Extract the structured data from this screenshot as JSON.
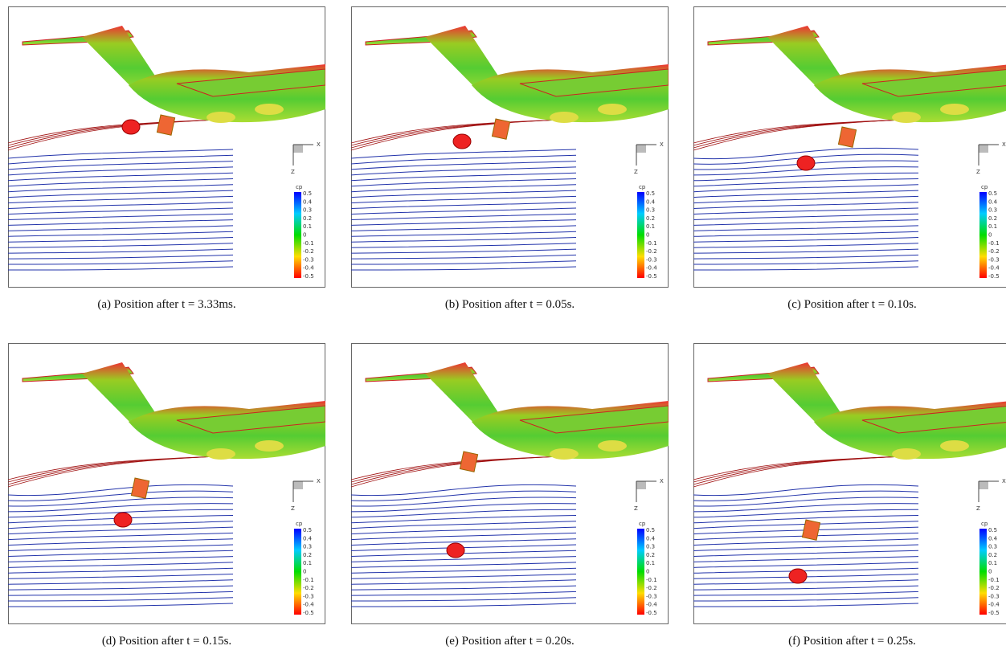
{
  "panels": [
    {
      "caption": "(a) Position after t = 3.33ms."
    },
    {
      "caption": "(b) Position after t = 0.05s."
    },
    {
      "caption": "(c) Position after t = 0.10s."
    },
    {
      "caption": "(d) Position after t = 0.15s."
    },
    {
      "caption": "(e) Position after t = 0.20s."
    },
    {
      "caption": "(f) Position after t = 0.25s."
    }
  ],
  "colorbar": {
    "title": "cp",
    "labels": [
      "0.5",
      "0.4",
      "0.3",
      "0.2",
      "0.1",
      "0",
      "-0.1",
      "-0.2",
      "-0.3",
      "-0.4",
      "-0.5"
    ]
  },
  "axes": {
    "x": "X",
    "z": "Z"
  }
}
